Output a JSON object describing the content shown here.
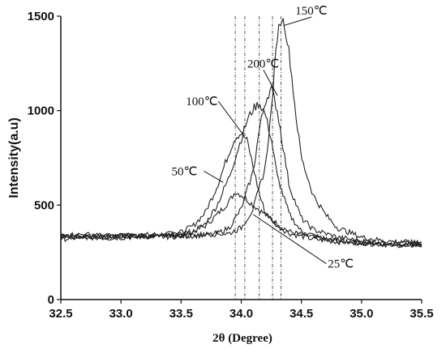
{
  "chart_data": {
    "type": "line",
    "xlabel": "2θ (Degree)",
    "ylabel": "Intensity(a.u)",
    "xlim": [
      32.5,
      35.5
    ],
    "ylim": [
      0,
      1500
    ],
    "x_ticks": [
      "32.5",
      "33.0",
      "33.5",
      "34.0",
      "34.5",
      "35.0",
      "35.5"
    ],
    "y_ticks": [
      "0",
      "500",
      "1000",
      "1500"
    ],
    "grid": false,
    "legend": "none",
    "reference_lines_x": [
      33.95,
      34.03,
      34.15,
      34.26,
      34.33
    ],
    "series": [
      {
        "name": "25℃",
        "points": [
          [
            32.5,
            340
          ],
          [
            32.7,
            335
          ],
          [
            32.9,
            330
          ],
          [
            33.1,
            340
          ],
          [
            33.3,
            345
          ],
          [
            33.5,
            350
          ],
          [
            33.6,
            360
          ],
          [
            33.7,
            390
          ],
          [
            33.8,
            450
          ],
          [
            33.9,
            520
          ],
          [
            33.95,
            570
          ],
          [
            34.0,
            555
          ],
          [
            34.1,
            500
          ],
          [
            34.2,
            450
          ],
          [
            34.3,
            400
          ],
          [
            34.4,
            360
          ],
          [
            34.6,
            330
          ],
          [
            34.8,
            310
          ],
          [
            35.0,
            300
          ],
          [
            35.2,
            295
          ],
          [
            35.5,
            290
          ]
        ]
      },
      {
        "name": "50℃",
        "points": [
          [
            32.5,
            330
          ],
          [
            32.7,
            335
          ],
          [
            32.9,
            340
          ],
          [
            33.1,
            335
          ],
          [
            33.3,
            340
          ],
          [
            33.5,
            355
          ],
          [
            33.6,
            390
          ],
          [
            33.7,
            460
          ],
          [
            33.8,
            600
          ],
          [
            33.9,
            780
          ],
          [
            33.95,
            860
          ],
          [
            34.0,
            880
          ],
          [
            34.05,
            840
          ],
          [
            34.1,
            700
          ],
          [
            34.15,
            560
          ],
          [
            34.2,
            460
          ],
          [
            34.3,
            390
          ],
          [
            34.4,
            350
          ],
          [
            34.6,
            320
          ],
          [
            34.8,
            305
          ],
          [
            35.0,
            300
          ],
          [
            35.2,
            290
          ],
          [
            35.5,
            285
          ]
        ]
      },
      {
        "name": "100℃",
        "points": [
          [
            32.5,
            320
          ],
          [
            32.7,
            330
          ],
          [
            32.9,
            325
          ],
          [
            33.1,
            330
          ],
          [
            33.3,
            335
          ],
          [
            33.5,
            340
          ],
          [
            33.6,
            360
          ],
          [
            33.7,
            400
          ],
          [
            33.8,
            500
          ],
          [
            33.9,
            650
          ],
          [
            34.0,
            850
          ],
          [
            34.05,
            950
          ],
          [
            34.1,
            1010
          ],
          [
            34.15,
            1040
          ],
          [
            34.2,
            980
          ],
          [
            34.25,
            850
          ],
          [
            34.3,
            650
          ],
          [
            34.4,
            450
          ],
          [
            34.5,
            360
          ],
          [
            34.7,
            320
          ],
          [
            34.9,
            305
          ],
          [
            35.1,
            300
          ],
          [
            35.3,
            290
          ],
          [
            35.5,
            290
          ]
        ]
      },
      {
        "name": "200℃",
        "points": [
          [
            32.5,
            335
          ],
          [
            32.7,
            330
          ],
          [
            32.9,
            335
          ],
          [
            33.1,
            340
          ],
          [
            33.3,
            330
          ],
          [
            33.5,
            335
          ],
          [
            33.7,
            340
          ],
          [
            33.8,
            350
          ],
          [
            33.9,
            380
          ],
          [
            34.0,
            480
          ],
          [
            34.1,
            680
          ],
          [
            34.15,
            900
          ],
          [
            34.2,
            1050
          ],
          [
            34.25,
            1120
          ],
          [
            34.3,
            1000
          ],
          [
            34.35,
            800
          ],
          [
            34.4,
            600
          ],
          [
            34.5,
            430
          ],
          [
            34.6,
            370
          ],
          [
            34.8,
            330
          ],
          [
            35.0,
            310
          ],
          [
            35.2,
            300
          ],
          [
            35.5,
            300
          ]
        ]
      },
      {
        "name": "150℃",
        "points": [
          [
            32.5,
            340
          ],
          [
            32.7,
            345
          ],
          [
            32.9,
            335
          ],
          [
            33.1,
            340
          ],
          [
            33.3,
            335
          ],
          [
            33.5,
            340
          ],
          [
            33.7,
            345
          ],
          [
            33.9,
            350
          ],
          [
            34.0,
            380
          ],
          [
            34.1,
            480
          ],
          [
            34.2,
            700
          ],
          [
            34.25,
            1000
          ],
          [
            34.3,
            1400
          ],
          [
            34.33,
            1490
          ],
          [
            34.36,
            1460
          ],
          [
            34.4,
            1300
          ],
          [
            34.45,
            1000
          ],
          [
            34.5,
            750
          ],
          [
            34.6,
            550
          ],
          [
            34.7,
            450
          ],
          [
            34.8,
            380
          ],
          [
            35.0,
            330
          ],
          [
            35.2,
            310
          ],
          [
            35.5,
            300
          ]
        ]
      }
    ],
    "annotations": [
      {
        "text": "25℃",
        "series": "25℃",
        "at": [
          34.1,
          450
        ],
        "label_at": [
          34.72,
          190
        ]
      },
      {
        "text": "50℃",
        "series": "50℃",
        "at": [
          33.85,
          620
        ],
        "label_at": [
          33.42,
          680
        ]
      },
      {
        "text": "100℃",
        "series": "100℃",
        "at": [
          34.02,
          870
        ],
        "label_at": [
          33.54,
          1050
        ]
      },
      {
        "text": "200℃",
        "series": "200℃",
        "at": [
          34.3,
          1080
        ],
        "label_at": [
          34.05,
          1250
        ]
      },
      {
        "text": "150℃",
        "series": "150℃",
        "at": [
          34.35,
          1450
        ],
        "label_at": [
          34.45,
          1530
        ]
      }
    ]
  }
}
